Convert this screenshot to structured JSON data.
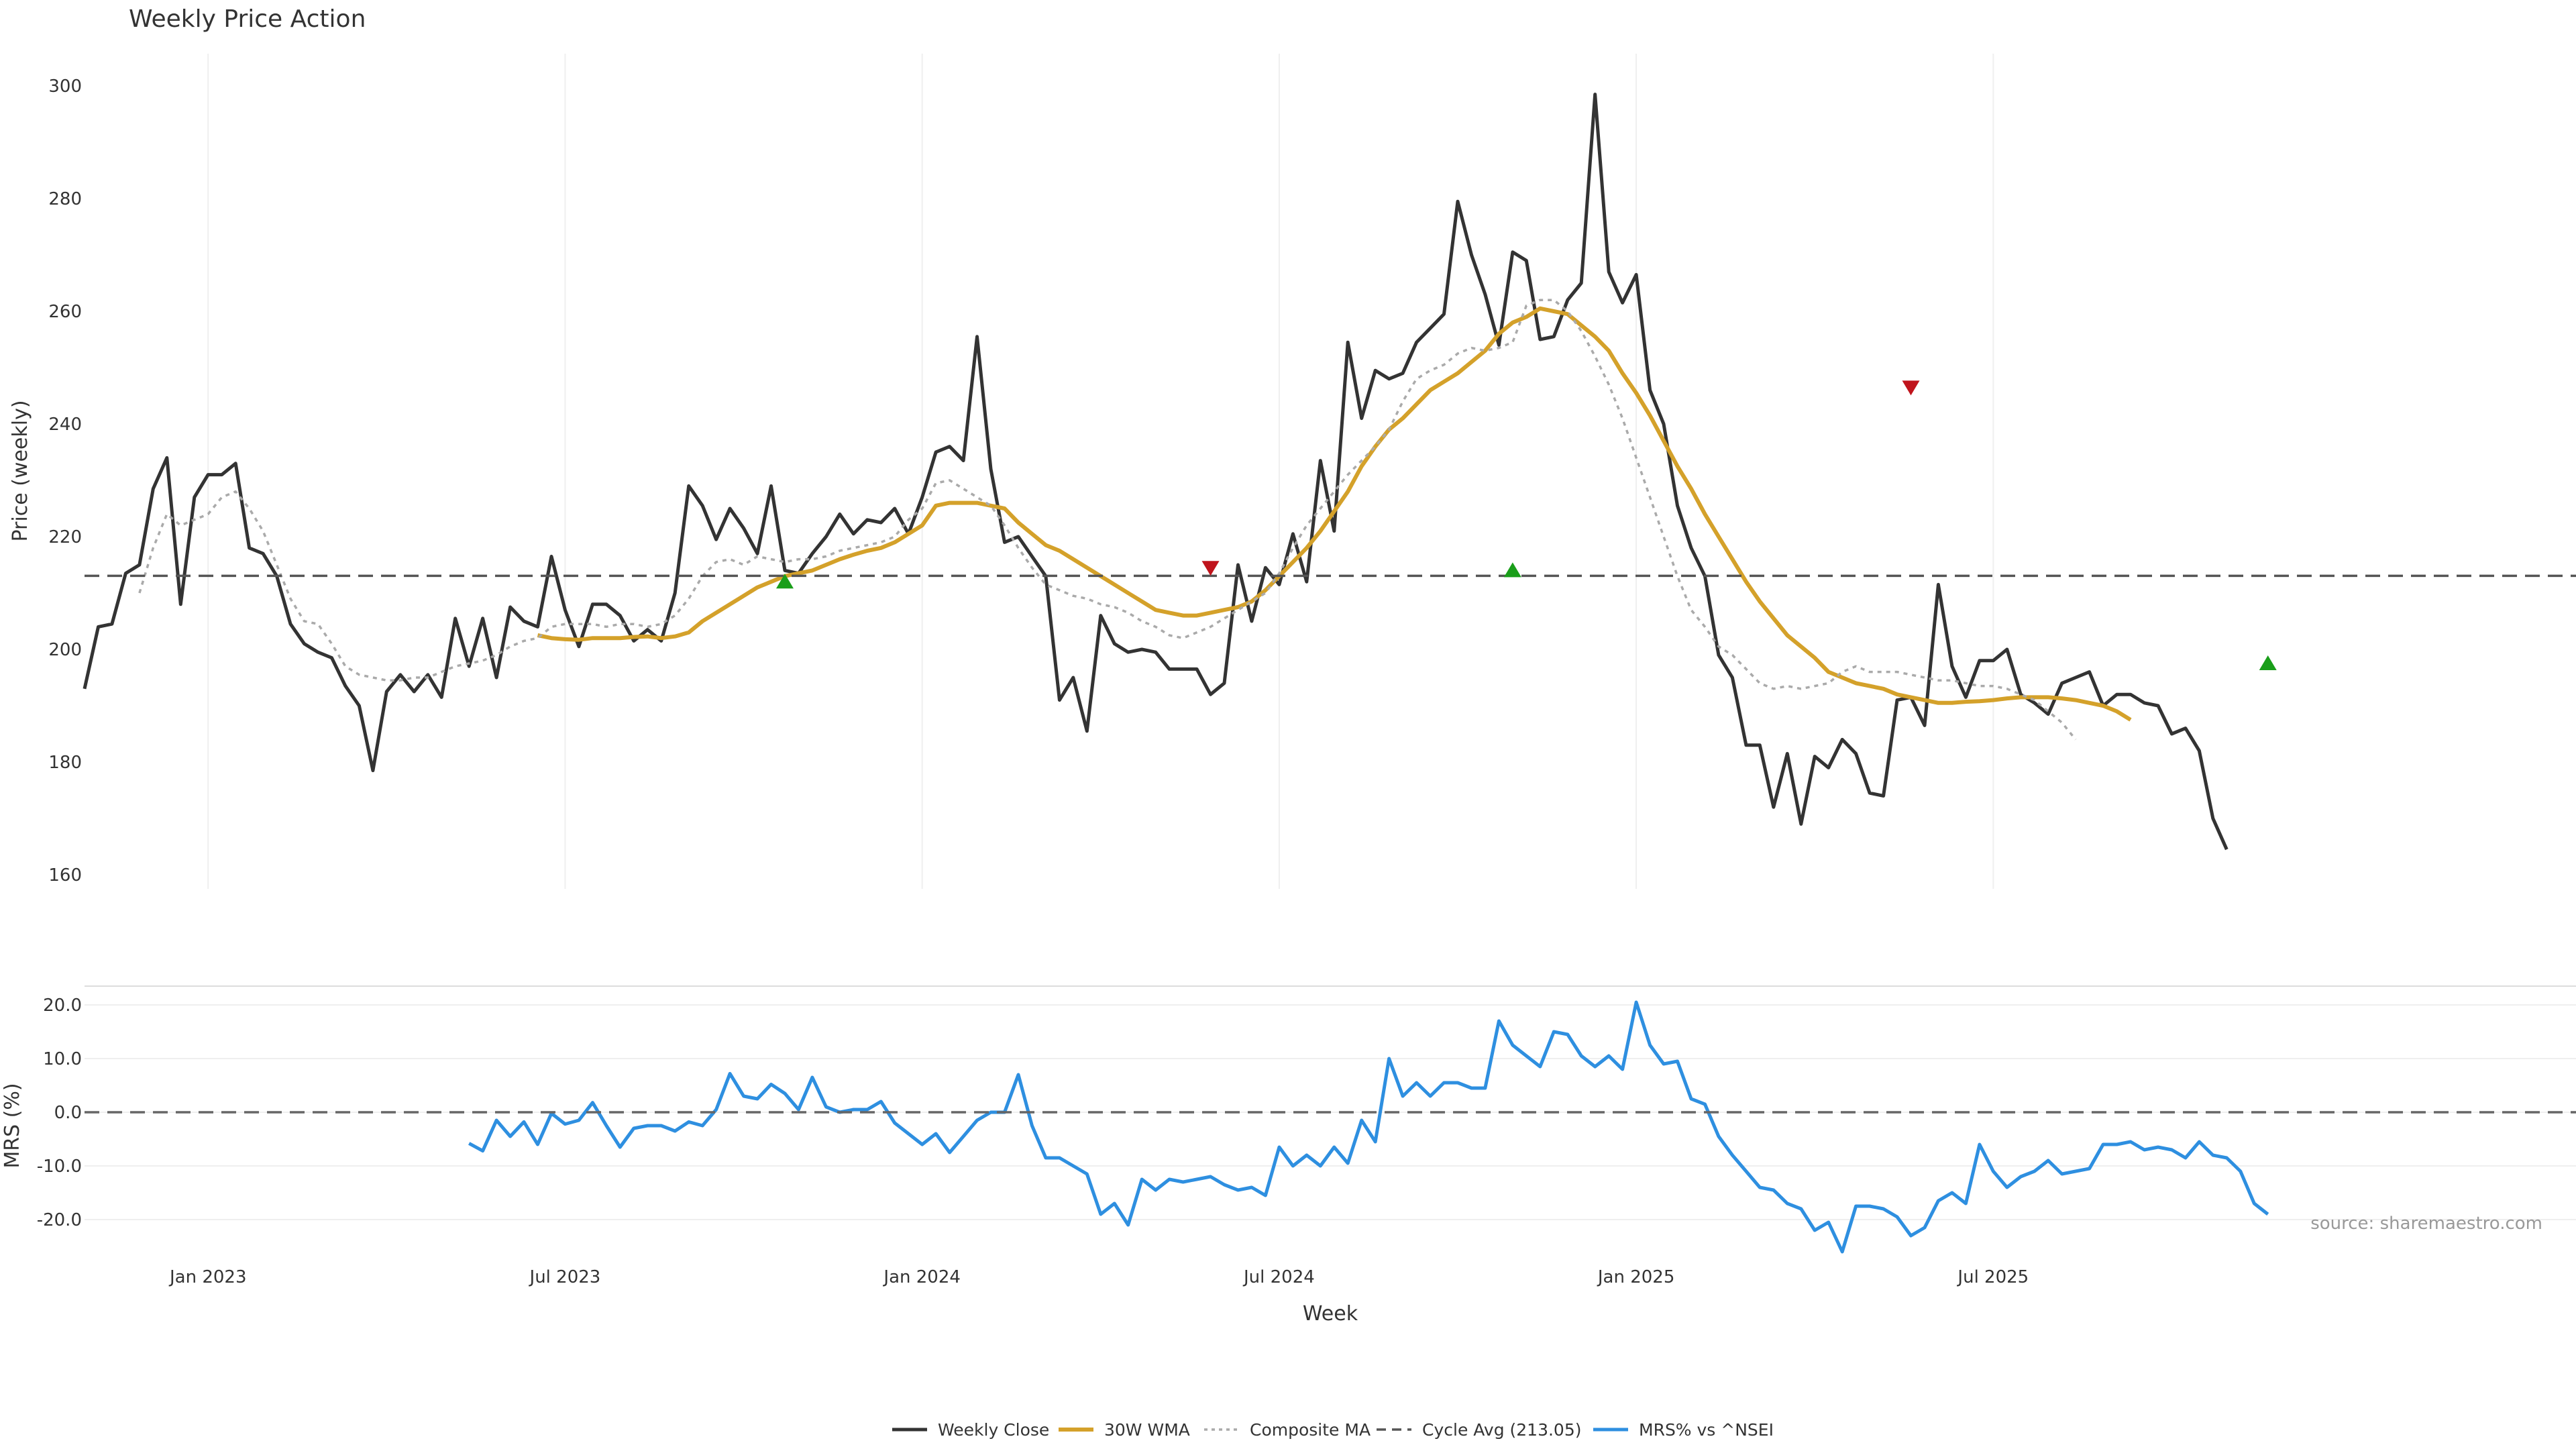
{
  "chart_data": {
    "type": "line",
    "title": "Weekly Price Action",
    "xlabel": "Week",
    "source": "source: sharemaestro.com",
    "x_ticks": [
      "Jan 2023",
      "Jul 2023",
      "Jan 2024",
      "Jul 2024",
      "Jan 2025",
      "Jul 2025"
    ],
    "x_range_weeks": [
      0,
      185
    ],
    "grid": "x-axis",
    "legend_position": "bottom-center",
    "price_panel": {
      "ylabel": "Price (weekly)",
      "ylim": [
        160,
        300
      ],
      "y_ticks": [
        "160",
        "180",
        "200",
        "220",
        "240",
        "260",
        "280",
        "300"
      ],
      "series": [
        {
          "name": "Weekly Close",
          "color": "#333333",
          "style": "solid",
          "start_week": 0,
          "values": [
            193.0,
            204.0,
            204.5,
            213.5,
            215.0,
            228.5,
            234.0,
            208.0,
            227.0,
            231.0,
            231.0,
            233.0,
            218.0,
            217.0,
            213.0,
            204.5,
            201.0,
            199.5,
            198.5,
            193.5,
            190.0,
            178.5,
            192.5,
            195.5,
            192.5,
            195.5,
            191.5,
            205.5,
            197.0,
            205.5,
            195.0,
            207.5,
            205.0,
            204.0,
            216.5,
            207.0,
            200.5,
            208.0,
            208.0,
            206.0,
            201.5,
            203.5,
            201.5,
            210.0,
            229.0,
            225.5,
            219.5,
            225.0,
            221.5,
            217.0,
            229.0,
            214.0,
            213.5,
            217.0,
            220.0,
            224.0,
            220.5,
            223.0,
            222.5,
            225.0,
            220.5,
            227.0,
            235.0,
            236.0,
            233.5,
            255.5,
            232.0,
            219.0,
            220.0,
            216.5,
            213.0,
            191.0,
            195.0,
            185.5,
            206.0,
            201.0,
            199.5,
            200.0,
            199.5,
            196.5,
            196.5,
            196.5,
            192.0,
            194.0,
            215.0,
            205.0,
            214.5,
            211.5,
            220.5,
            212.0,
            233.5,
            221.0,
            254.5,
            241.0,
            249.5,
            248.0,
            249.0,
            254.5,
            257.0,
            259.5,
            279.5,
            270.0,
            263.0,
            254.0,
            270.5,
            269.0,
            255.0,
            255.5,
            262.0,
            265.0,
            298.5,
            267.0,
            261.5,
            266.5,
            246.0,
            240.0,
            225.5,
            218.0,
            213.0,
            199.0,
            195.0,
            183.0,
            183.0,
            172.0,
            181.5,
            169.0,
            181.0,
            179.0,
            184.0,
            181.5,
            174.5,
            174.0,
            191.0,
            191.5,
            186.5,
            211.5,
            197.0,
            191.5,
            198.0,
            198.0,
            200.0,
            192.0,
            190.5,
            188.5,
            194.0,
            195.0,
            196.0,
            190.0,
            192.0,
            192.0,
            190.5,
            190.0,
            185.0,
            186.0,
            182.0,
            170.0,
            164.5
          ]
        },
        {
          "name": "30W WMA",
          "color": "#d4a12a",
          "style": "solid",
          "start_week": 33,
          "values": [
            202.5,
            202.0,
            201.8,
            201.7,
            202.0,
            202.0,
            202.0,
            202.2,
            202.3,
            202.0,
            202.3,
            203.0,
            205.0,
            206.5,
            208.0,
            209.5,
            211.0,
            212.0,
            213.0,
            213.5,
            214.0,
            215.0,
            216.0,
            216.8,
            217.5,
            218.0,
            219.0,
            220.5,
            222.0,
            225.5,
            226.0,
            226.0,
            226.0,
            225.5,
            225.0,
            222.5,
            220.5,
            218.5,
            217.5,
            216.0,
            214.5,
            213.0,
            211.5,
            210.0,
            208.5,
            207.0,
            206.5,
            206.0,
            206.0,
            206.5,
            207.0,
            207.5,
            208.5,
            210.5,
            213.0,
            215.5,
            218.0,
            221.0,
            224.5,
            228.0,
            232.5,
            236.0,
            239.0,
            241.0,
            243.5,
            246.0,
            247.5,
            249.0,
            251.0,
            253.0,
            256.0,
            258.0,
            259.0,
            260.5,
            260.0,
            259.5,
            257.5,
            255.5,
            253.0,
            249.0,
            245.5,
            241.5,
            237.0,
            232.5,
            228.5,
            224.0,
            220.0,
            216.0,
            212.0,
            208.5,
            205.5,
            202.5,
            200.5,
            198.5,
            196.0,
            195.0,
            194.0,
            193.5,
            193.0,
            192.0,
            191.5,
            191.0,
            190.5,
            190.5,
            190.7,
            190.8,
            191.0,
            191.3,
            191.5,
            191.5,
            191.5,
            191.3,
            191.0,
            190.5,
            190.0,
            189.0,
            187.5
          ]
        },
        {
          "name": "Composite MA",
          "color": "#aaaaaa",
          "style": "dotted",
          "start_week": 4,
          "values": [
            210.0,
            218.0,
            224.0,
            222.0,
            223.0,
            224.0,
            227.0,
            228.0,
            225.0,
            221.0,
            215.0,
            209.0,
            205.0,
            204.5,
            201.0,
            197.0,
            195.5,
            195.0,
            194.5,
            194.5,
            195.0,
            195.0,
            196.0,
            197.0,
            197.5,
            198.0,
            199.0,
            200.5,
            201.5,
            202.0,
            204.0,
            204.5,
            204.5,
            204.5,
            204.0,
            204.5,
            204.5,
            204.0,
            204.5,
            206.0,
            209.0,
            213.0,
            215.5,
            216.0,
            215.0,
            216.5,
            216.0,
            215.5,
            216.0,
            216.0,
            216.5,
            217.5,
            218.0,
            218.5,
            219.0,
            220.0,
            223.0,
            225.0,
            229.5,
            230.0,
            228.5,
            227.0,
            225.5,
            222.0,
            218.0,
            214.5,
            211.5,
            210.5,
            209.5,
            209.0,
            208.0,
            207.5,
            206.5,
            205.0,
            204.0,
            202.5,
            202.0,
            203.0,
            204.0,
            205.5,
            207.0,
            208.5,
            210.0,
            213.5,
            218.0,
            222.0,
            225.0,
            228.0,
            231.0,
            233.5,
            236.0,
            239.0,
            244.0,
            248.0,
            249.5,
            250.5,
            252.5,
            253.5,
            253.0,
            253.5,
            254.5,
            261.0,
            262.0,
            262.0,
            260.0,
            256.5,
            252.0,
            247.0,
            241.0,
            234.0,
            227.0,
            220.0,
            213.0,
            207.0,
            204.0,
            200.5,
            199.0,
            196.5,
            194.0,
            193.0,
            193.5,
            193.0,
            193.5,
            194.0,
            196.0,
            197.0,
            196.0,
            196.0,
            196.0,
            195.5,
            195.0,
            194.5,
            194.5,
            194.0,
            193.5,
            193.5,
            193.0,
            192.0,
            191.0,
            189.0,
            187.0,
            184.0
          ]
        },
        {
          "name": "Cycle Avg (213.05)",
          "color": "#555555",
          "style": "dashed",
          "level": 213.05
        }
      ],
      "buy_signals": [
        {
          "week": 51,
          "price": 212
        },
        {
          "week": 104,
          "price": 214
        },
        {
          "week": 159,
          "price": 197.5
        }
      ],
      "sell_signals": [
        {
          "week": 82,
          "price": 214.5
        },
        {
          "week": 133,
          "price": 246.5
        }
      ],
      "signal_colors": {
        "buy": "#1a9e1a",
        "sell": "#c0141c"
      }
    },
    "mrs_panel": {
      "ylabel": "MRS (%)",
      "ylim": [
        -25,
        22
      ],
      "y_ticks": [
        "-20.0",
        "-10.0",
        "0.0",
        "10.0",
        "20.0"
      ],
      "series": [
        {
          "name": "MRS% vs ^NSEI",
          "color": "#2e8fe0",
          "style": "solid",
          "start_week": 28,
          "values": [
            -5.8,
            -7.2,
            -1.5,
            -4.5,
            -1.8,
            -6.0,
            -0.2,
            -2.2,
            -1.5,
            1.8,
            -2.5,
            -6.5,
            -3.0,
            -2.5,
            -2.5,
            -3.5,
            -1.8,
            -2.5,
            0.5,
            7.2,
            3.0,
            2.5,
            5.2,
            3.5,
            0.5,
            6.5,
            1.0,
            0.0,
            0.5,
            0.5,
            2.0,
            -2.0,
            -4.0,
            -6.0,
            -4.0,
            -7.5,
            -4.5,
            -1.5,
            0.0,
            0.0,
            7.0,
            -2.5,
            -8.5,
            -8.5,
            -10.0,
            -11.5,
            -19.0,
            -17.0,
            -21.0,
            -12.5,
            -14.5,
            -12.5,
            -13.0,
            -12.5,
            -12.0,
            -13.5,
            -14.5,
            -14.0,
            -15.5,
            -6.5,
            -10.0,
            -8.0,
            -10.0,
            -6.5,
            -9.5,
            -1.5,
            -5.5,
            10.0,
            3.0,
            5.5,
            3.0,
            5.5,
            5.5,
            4.5,
            4.5,
            17.0,
            12.5,
            10.5,
            8.5,
            15.0,
            14.5,
            10.5,
            8.5,
            10.5,
            8.0,
            20.5,
            12.5,
            9.0,
            9.5,
            2.5,
            1.5,
            -4.5,
            -8.0,
            -11.0,
            -14.0,
            -14.5,
            -17.0,
            -18.0,
            -22.0,
            -20.5,
            -26.0,
            -17.5,
            -17.5,
            -18.0,
            -19.5,
            -23.0,
            -21.5,
            -16.5,
            -15.0,
            -17.0,
            -6.0,
            -11.0,
            -14.0,
            -12.0,
            -11.0,
            -9.0,
            -11.5,
            -11.0,
            -10.5,
            -6.0,
            -6.0,
            -5.5,
            -7.0,
            -6.5,
            -7.0,
            -8.5,
            -5.5,
            -8.0,
            -8.5,
            -11.0,
            -17.0,
            -19.0
          ]
        },
        {
          "name": "Zero line",
          "color": "#666666",
          "style": "dashed",
          "level": 0
        }
      ]
    },
    "legend": [
      "Weekly Close",
      "30W WMA",
      "Composite MA",
      "Cycle Avg (213.05)",
      "MRS% vs ^NSEI"
    ]
  }
}
